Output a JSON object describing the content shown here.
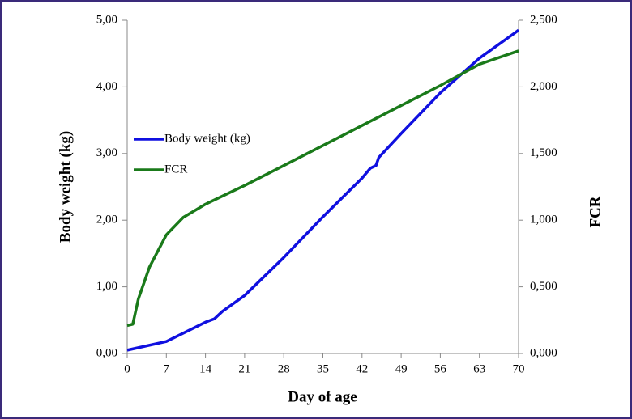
{
  "chart_data": {
    "type": "line",
    "xlabel": "Day of age",
    "ylabel": "Body weight (kg)",
    "y2label": "FCR",
    "xlim": [
      0,
      70
    ],
    "xticks": [
      0,
      7,
      14,
      21,
      28,
      35,
      42,
      49,
      56,
      63,
      70
    ],
    "ylim": [
      0,
      5
    ],
    "yticks": [
      {
        "value": 0,
        "label": "0,00"
      },
      {
        "value": 1,
        "label": "1,00"
      },
      {
        "value": 2,
        "label": "2,00"
      },
      {
        "value": 3,
        "label": "3,00"
      },
      {
        "value": 4,
        "label": "4,00"
      },
      {
        "value": 5,
        "label": "5,00"
      }
    ],
    "y2lim": [
      0,
      2.5
    ],
    "y2ticks": [
      {
        "value": 0,
        "label": "0,000"
      },
      {
        "value": 0.5,
        "label": "0,500"
      },
      {
        "value": 1,
        "label": "1,000"
      },
      {
        "value": 1.5,
        "label": "1,500"
      },
      {
        "value": 2,
        "label": "2,000"
      },
      {
        "value": 2.5,
        "label": "2,500"
      }
    ],
    "legend": "left",
    "series": [
      {
        "name": "Body weight (kg)",
        "color": "#1010e0",
        "x": [
          0,
          7,
          14,
          15.6,
          17,
          21,
          28,
          35,
          42,
          43.5,
          44.5,
          45,
          49,
          56,
          63,
          70
        ],
        "values": [
          0.05,
          0.18,
          0.47,
          0.52,
          0.63,
          0.87,
          1.44,
          2.05,
          2.63,
          2.78,
          2.82,
          2.94,
          3.3,
          3.91,
          4.43,
          4.85
        ]
      },
      {
        "name": "FCR",
        "color": "#1a7a1a",
        "axis": "y2",
        "x": [
          0,
          1,
          2,
          4,
          7,
          10,
          14,
          21,
          28,
          35,
          42,
          49,
          56,
          63,
          70
        ],
        "values": [
          0.21,
          0.22,
          0.41,
          0.65,
          0.89,
          1.02,
          1.12,
          1.26,
          1.41,
          1.56,
          1.71,
          1.86,
          2.01,
          2.17,
          2.27
        ]
      }
    ]
  }
}
